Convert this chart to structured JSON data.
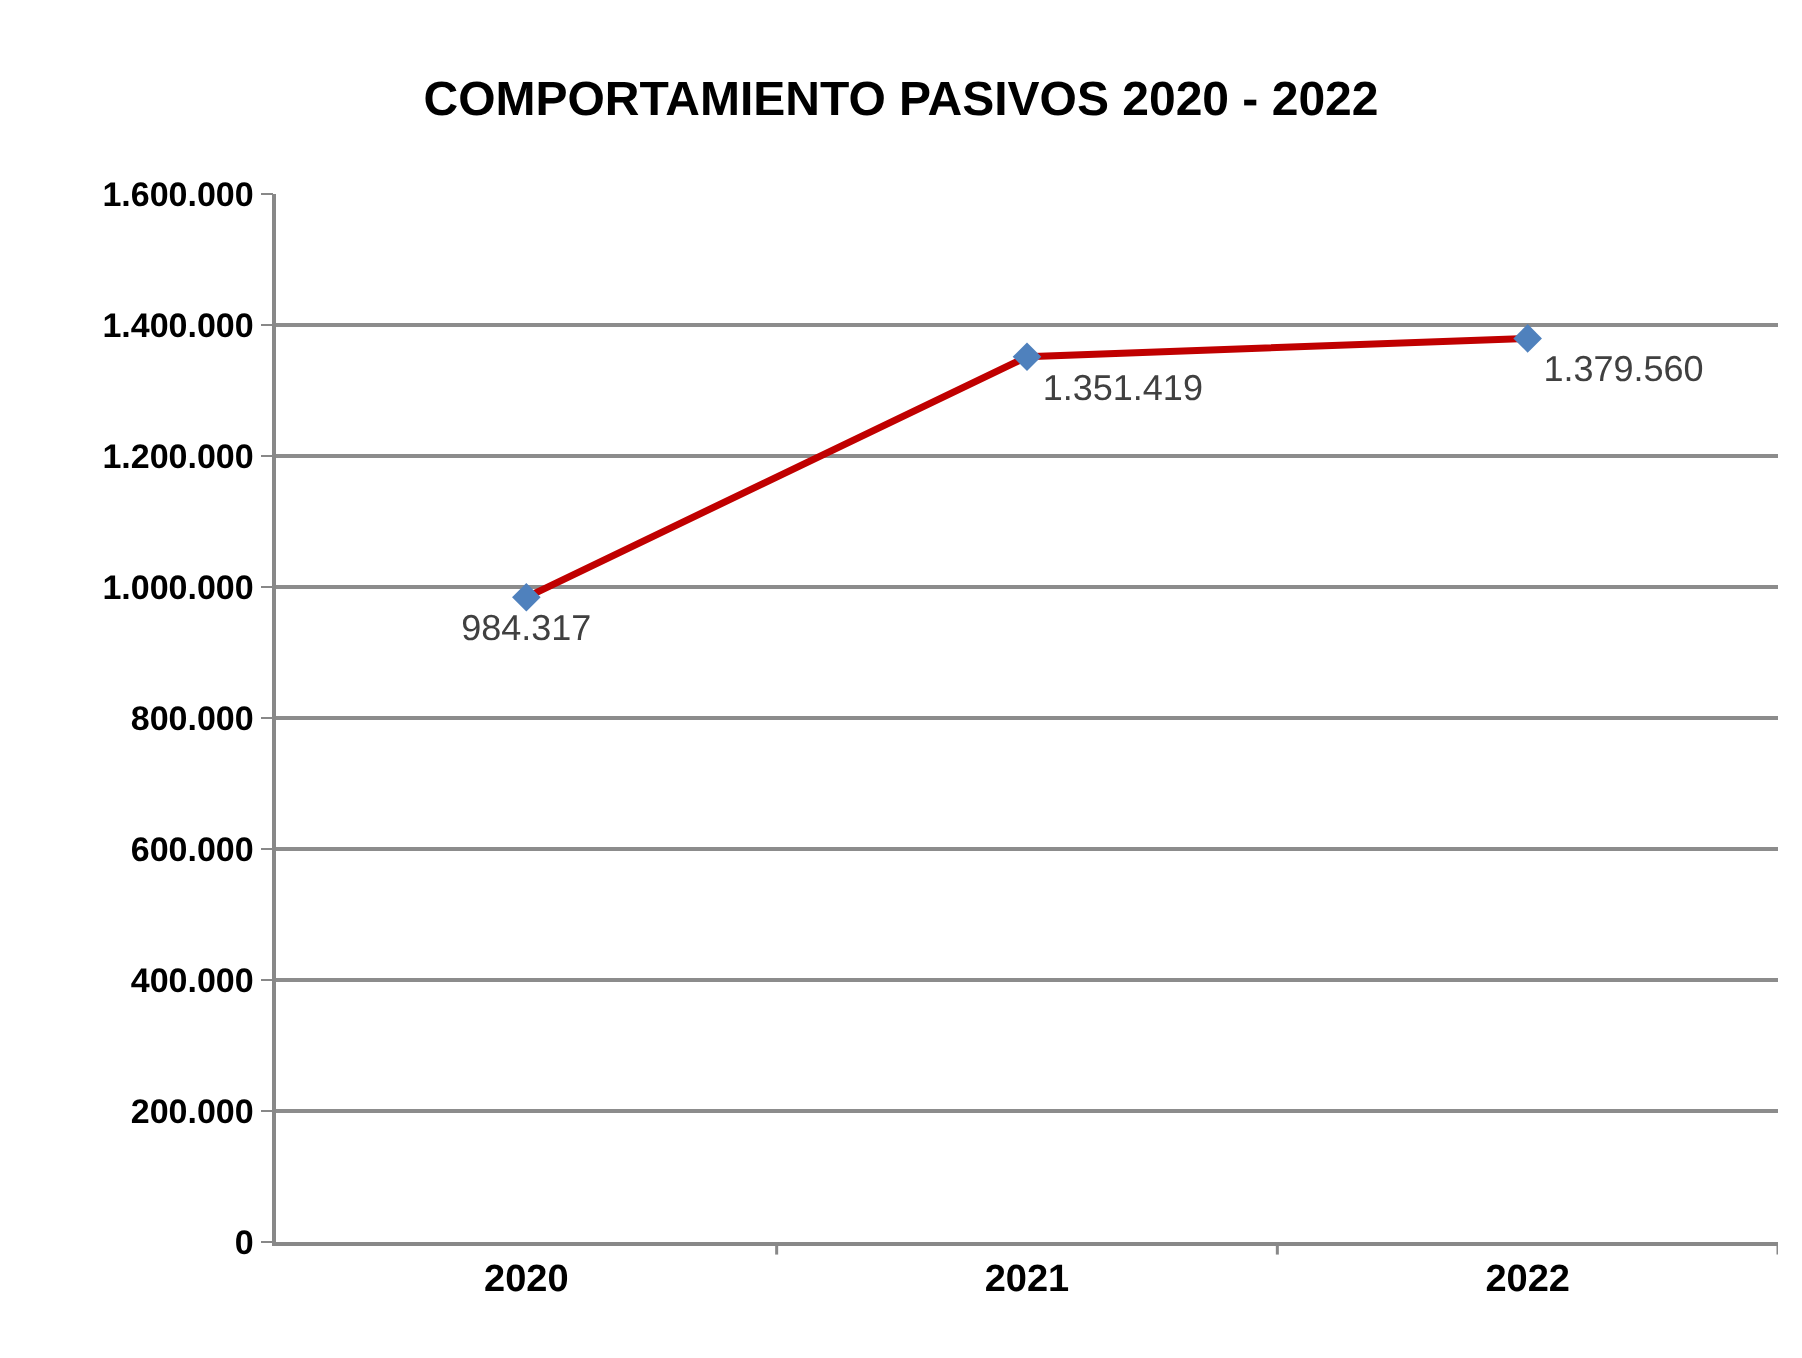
{
  "chart_data": {
    "type": "line",
    "title": "COMPORTAMIENTO PASIVOS 2020 - 2022",
    "categories": [
      "2020",
      "2021",
      "2022"
    ],
    "series": [
      {
        "color": "#c00000",
        "colors": [
          "#4f81bd",
          "#4f81bd",
          "#4f81bd"
        ],
        "values": [
          984317,
          1351419,
          1379560
        ],
        "value_labels": [
          "984.317",
          "1.351.419",
          "1.379.560"
        ]
      }
    ],
    "ylim": [
      0,
      1600000
    ],
    "yticks": [
      {
        "value": 0,
        "label": "0"
      },
      {
        "value": 200000,
        "label": "200.000"
      },
      {
        "value": 400000,
        "label": "400.000"
      },
      {
        "value": 600000,
        "label": "600.000"
      },
      {
        "value": 800000,
        "label": "800.000"
      },
      {
        "value": 1000000,
        "label": "1.000.000"
      },
      {
        "value": 1200000,
        "label": "1.200.000"
      },
      {
        "value": 1400000,
        "label": "1.400.000"
      },
      {
        "value": 1600000,
        "label": "1.600.000"
      }
    ],
    "grid": "y",
    "marker": "diamond",
    "line_style": "solid"
  }
}
